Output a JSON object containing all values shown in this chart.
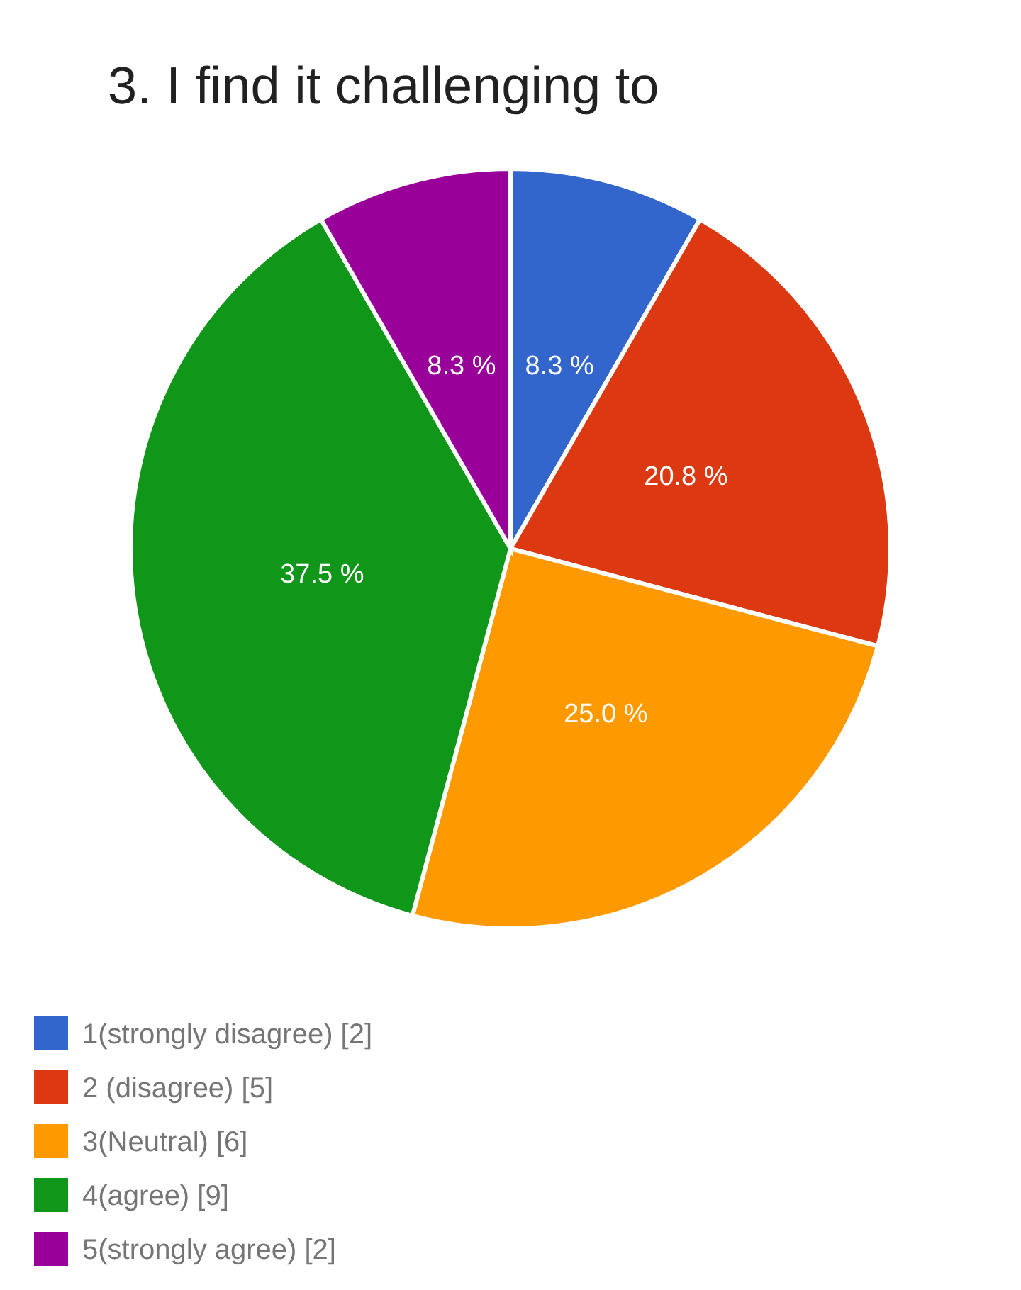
{
  "chart_data": {
    "type": "pie",
    "title": "3. I find it challenging to",
    "categories": [
      "1(strongly disagree)  [2]",
      "2 (disagree)  [5]",
      "3(Neutral)  [6]",
      "4(agree)  [9]",
      "5(strongly agree)  [2]"
    ],
    "values": [
      8.3,
      20.8,
      25.0,
      37.5,
      8.3
    ],
    "value_labels": [
      "8.3 %",
      "20.8 %",
      "25.0 %",
      "37.5 %",
      "8.3 %"
    ],
    "colors": [
      "#3366cc",
      "#dc3912",
      "#ff9900",
      "#109618",
      "#990099"
    ],
    "legend": "bottom left"
  }
}
